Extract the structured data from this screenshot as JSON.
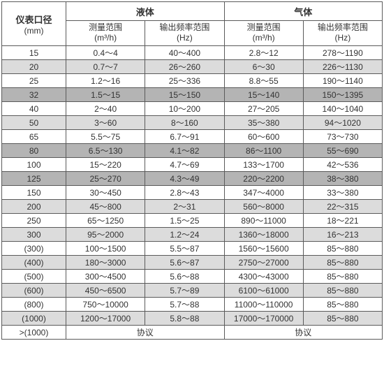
{
  "table": {
    "header": {
      "diameter_label": "仪表口径",
      "diameter_unit": "(mm)",
      "liquid_label": "液体",
      "gas_label": "气体",
      "meas_range_label": "测量范围",
      "meas_range_unit": "(m³/h)",
      "freq_range_label": "输出频率范围",
      "freq_range_unit": "(Hz)"
    },
    "rows": [
      {
        "shade": "even",
        "dia": "15",
        "lm": "0.4～4",
        "lf": "40～400",
        "gm": "2.8～12",
        "gf": "278～1190"
      },
      {
        "shade": "odd",
        "dia": "20",
        "lm": "0.7～7",
        "lf": "26～260",
        "gm": "6～30",
        "gf": "226～1130"
      },
      {
        "shade": "even",
        "dia": "25",
        "lm": "1.2～16",
        "lf": "25～336",
        "gm": "8.8～55",
        "gf": "190～1140"
      },
      {
        "shade": "dark",
        "dia": "32",
        "lm": "1.5～15",
        "lf": "15～150",
        "gm": "15～140",
        "gf": "150～1395"
      },
      {
        "shade": "even",
        "dia": "40",
        "lm": "2～40",
        "lf": "10～200",
        "gm": "27～205",
        "gf": "140～1040"
      },
      {
        "shade": "odd",
        "dia": "50",
        "lm": "3～60",
        "lf": "8～160",
        "gm": "35～380",
        "gf": "94～1020"
      },
      {
        "shade": "even",
        "dia": "65",
        "lm": "5.5～75",
        "lf": "6.7～91",
        "gm": "60～600",
        "gf": "73～730"
      },
      {
        "shade": "dark",
        "dia": "80",
        "lm": "6.5～130",
        "lf": "4.1～82",
        "gm": "86～1100",
        "gf": "55～690"
      },
      {
        "shade": "even",
        "dia": "100",
        "lm": "15～220",
        "lf": "4.7～69",
        "gm": "133～1700",
        "gf": "42～536"
      },
      {
        "shade": "dark",
        "dia": "125",
        "lm": "25～270",
        "lf": "4.3～49",
        "gm": "220～2200",
        "gf": "38～380"
      },
      {
        "shade": "even",
        "dia": "150",
        "lm": "30～450",
        "lf": "2.8～43",
        "gm": "347～4000",
        "gf": "33～380"
      },
      {
        "shade": "odd",
        "dia": "200",
        "lm": "45～800",
        "lf": "2～31",
        "gm": "560～8000",
        "gf": "22～315"
      },
      {
        "shade": "even",
        "dia": "250",
        "lm": "65～1250",
        "lf": "1.5～25",
        "gm": "890～11000",
        "gf": "18～221"
      },
      {
        "shade": "odd",
        "dia": "300",
        "lm": "95～2000",
        "lf": "1.2～24",
        "gm": "1360～18000",
        "gf": "16～213"
      },
      {
        "shade": "even",
        "dia": "(300)",
        "lm": "100～1500",
        "lf": "5.5～87",
        "gm": "1560～15600",
        "gf": "85～880"
      },
      {
        "shade": "odd",
        "dia": "(400)",
        "lm": "180～3000",
        "lf": "5.6～87",
        "gm": "2750～27000",
        "gf": "85～880"
      },
      {
        "shade": "even",
        "dia": "(500)",
        "lm": "300～4500",
        "lf": "5.6～88",
        "gm": "4300～43000",
        "gf": "85～880"
      },
      {
        "shade": "odd",
        "dia": "(600)",
        "lm": "450～6500",
        "lf": "5.7～89",
        "gm": "6100～61000",
        "gf": "85～880"
      },
      {
        "shade": "even",
        "dia": "(800)",
        "lm": "750～10000",
        "lf": "5.7～88",
        "gm": "11000～110000",
        "gf": "85～880"
      },
      {
        "shade": "odd",
        "dia": "(1000)",
        "lm": "1200～17000",
        "lf": "5.8～88",
        "gm": "17000～170000",
        "gf": "85～880"
      },
      {
        "shade": "even",
        "dia": ">(1000)",
        "lm": "协议",
        "lf": "",
        "gm": "协议",
        "gf": "",
        "span": true
      }
    ],
    "colors": {
      "border": "#5a5a5a",
      "even": "#ffffff",
      "odd": "#dcdcdc",
      "dark": "#b4b4b4",
      "text": "#333333"
    },
    "font_family": "Microsoft YaHei",
    "header_fontsize_pt": 10,
    "body_fontsize_pt": 9
  }
}
